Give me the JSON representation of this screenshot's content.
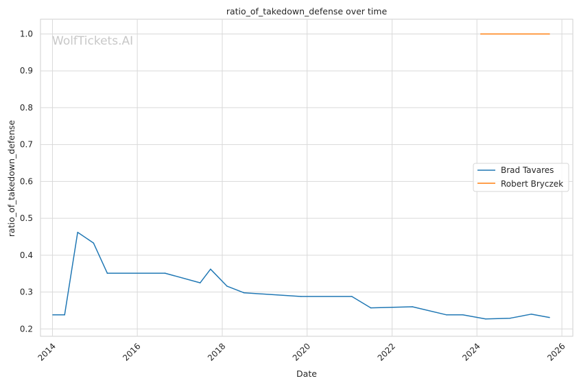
{
  "chart_data": {
    "type": "line",
    "title": "ratio_of_takedown_defense over time",
    "xlabel": "Date",
    "ylabel": "ratio_of_takedown_defense",
    "watermark": "WolfTickets.AI",
    "xlim": [
      "2013-09-20",
      "2026-04-05"
    ],
    "ylim": [
      0.18,
      1.04
    ],
    "x_ticks": [
      "2014",
      "2016",
      "2018",
      "2020",
      "2022",
      "2024",
      "2026"
    ],
    "y_ticks": [
      "0.2",
      "0.3",
      "0.4",
      "0.5",
      "0.6",
      "0.7",
      "0.8",
      "0.9",
      "1.0"
    ],
    "grid": true,
    "legend_position": "right",
    "series": [
      {
        "name": "Brad Tavares",
        "color": "#1f77b4",
        "points": [
          [
            "2014-01-04",
            0.238
          ],
          [
            "2014-04-16",
            0.238
          ],
          [
            "2014-08-06",
            0.462
          ],
          [
            "2014-12-20",
            0.433
          ],
          [
            "2015-04-18",
            0.351
          ],
          [
            "2016-08-27",
            0.351
          ],
          [
            "2017-06-25",
            0.325
          ],
          [
            "2017-09-22",
            0.362
          ],
          [
            "2018-02-10",
            0.316
          ],
          [
            "2018-07-06",
            0.298
          ],
          [
            "2019-11-09",
            0.288
          ],
          [
            "2021-01-20",
            0.288
          ],
          [
            "2021-07-02",
            0.257
          ],
          [
            "2022-06-25",
            0.26
          ],
          [
            "2023-04-15",
            0.238
          ],
          [
            "2023-09-02",
            0.238
          ],
          [
            "2024-03-16",
            0.227
          ],
          [
            "2024-10-12",
            0.229
          ],
          [
            "2025-04-12",
            0.24
          ],
          [
            "2025-09-16",
            0.231
          ]
        ]
      },
      {
        "name": "Robert Bryczek",
        "color": "#ff7f0e",
        "points": [
          [
            "2024-02-03",
            1.0
          ],
          [
            "2025-09-16",
            1.0
          ]
        ]
      }
    ]
  }
}
